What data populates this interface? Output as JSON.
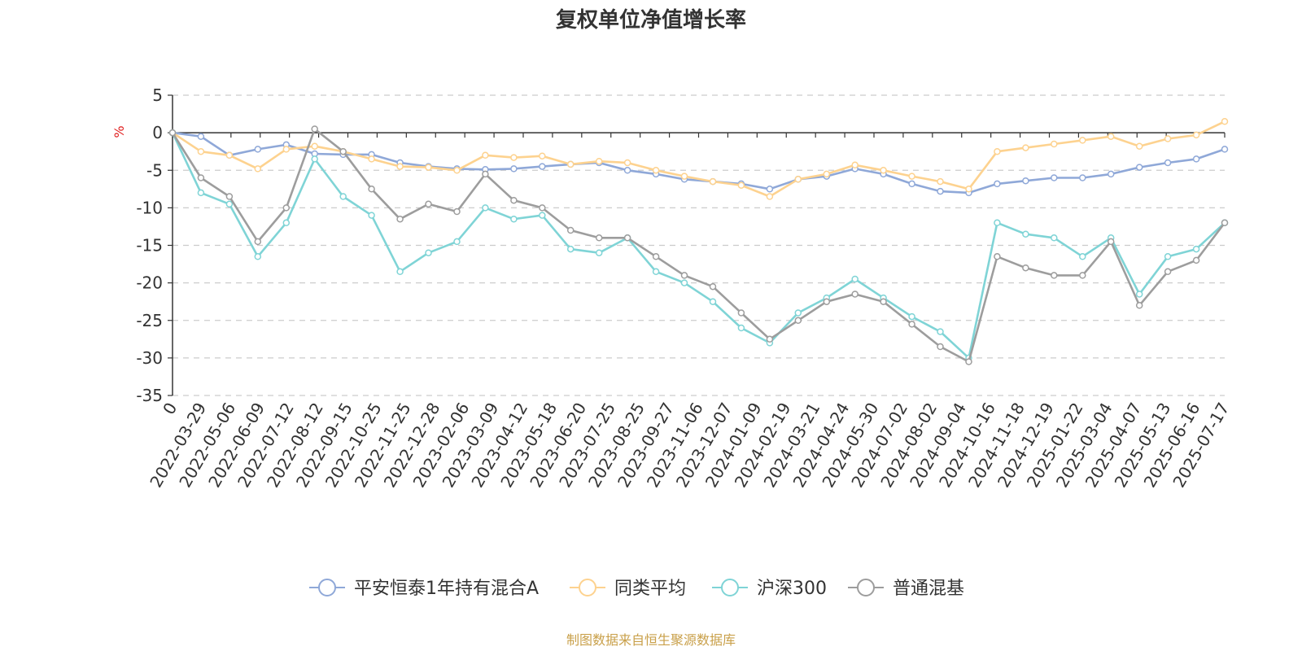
{
  "chart_data": {
    "type": "line",
    "title": "复权单位净值增长率",
    "y_unit": "%",
    "ylim": [
      -35,
      5
    ],
    "yticks": [
      5,
      0,
      -5,
      -10,
      -15,
      -20,
      -25,
      -30,
      -35
    ],
    "x_tick_labels": [
      "0",
      "2022-03-29",
      "2022-05-06",
      "2022-06-09",
      "2022-07-12",
      "2022-08-12",
      "2022-09-15",
      "2022-10-25",
      "2022-11-25",
      "2022-12-28",
      "2023-02-06",
      "2023-03-09",
      "2023-04-12",
      "2023-05-18",
      "2023-06-20",
      "2023-07-25",
      "2023-08-25",
      "2023-09-27",
      "2023-11-06",
      "2023-12-07",
      "2024-01-09",
      "2024-02-19",
      "2024-03-21",
      "2024-04-24",
      "2024-05-30",
      "2024-07-02",
      "2024-08-02",
      "2024-09-04",
      "2024-10-16",
      "2024-11-18",
      "2024-12-19",
      "2025-01-22",
      "2025-03-04",
      "2025-04-07",
      "2025-05-13",
      "2025-06-16",
      "2025-07-17"
    ],
    "grid": "horizontal-dashed",
    "legend_position": "bottom-center",
    "series": [
      {
        "name": "平安恒泰1年持有混合A",
        "color": "#8fa8d8",
        "values": [
          0,
          -0.5,
          -3.0,
          -2.2,
          -1.6,
          -2.8,
          -2.9,
          -2.9,
          -4.0,
          -4.5,
          -4.8,
          -4.9,
          -4.8,
          -4.5,
          -4.2,
          -4.0,
          -5.0,
          -5.5,
          -6.2,
          -6.5,
          -6.8,
          -7.5,
          -6.2,
          -5.8,
          -4.8,
          -5.5,
          -6.8,
          -7.8,
          -8.0,
          -6.8,
          -6.4,
          -6.0,
          -6.0,
          -5.5,
          -4.6,
          -4.0,
          -3.5,
          -2.2
        ]
      },
      {
        "name": "同类平均",
        "color": "#fdd28f",
        "values": [
          0,
          -2.5,
          -3.0,
          -4.8,
          -2.2,
          -1.8,
          -2.5,
          -3.5,
          -4.5,
          -4.6,
          -5.0,
          -3.0,
          -3.3,
          -3.1,
          -4.2,
          -3.8,
          -4.0,
          -5.0,
          -5.8,
          -6.5,
          -7.0,
          -8.5,
          -6.2,
          -5.5,
          -4.3,
          -5.0,
          -5.8,
          -6.5,
          -7.5,
          -2.5,
          -2.0,
          -1.5,
          -1.0,
          -0.5,
          -1.8,
          -0.8,
          -0.3,
          1.5
        ]
      },
      {
        "name": "沪深300",
        "color": "#7fd4d6",
        "values": [
          0,
          -8.0,
          -9.5,
          -16.5,
          -12.0,
          -3.5,
          -8.5,
          -11.0,
          -18.5,
          -16.0,
          -14.5,
          -10.0,
          -11.5,
          -11.0,
          -15.5,
          -16.0,
          -14.0,
          -18.5,
          -20.0,
          -22.5,
          -26.0,
          -28.0,
          -24.0,
          -22.0,
          -19.5,
          -22.0,
          -24.5,
          -26.5,
          -30.0,
          -12.0,
          -13.5,
          -14.0,
          -16.5,
          -14.0,
          -21.5,
          -16.5,
          -15.5,
          -12.0
        ]
      },
      {
        "name": "普通混基",
        "color": "#9d9d9d",
        "values": [
          0,
          -6.0,
          -8.5,
          -14.5,
          -10.0,
          0.5,
          -2.5,
          -7.5,
          -11.5,
          -9.5,
          -10.5,
          -5.5,
          -9.0,
          -10.0,
          -13.0,
          -14.0,
          -14.0,
          -16.5,
          -19.0,
          -20.5,
          -24.0,
          -27.5,
          -25.0,
          -22.5,
          -21.5,
          -22.5,
          -25.5,
          -28.5,
          -30.5,
          -16.5,
          -18.0,
          -19.0,
          -19.0,
          -14.5,
          -23.0,
          -18.5,
          -17.0,
          -12.0
        ]
      }
    ]
  },
  "footer": "制图数据来自恒生聚源数据库"
}
